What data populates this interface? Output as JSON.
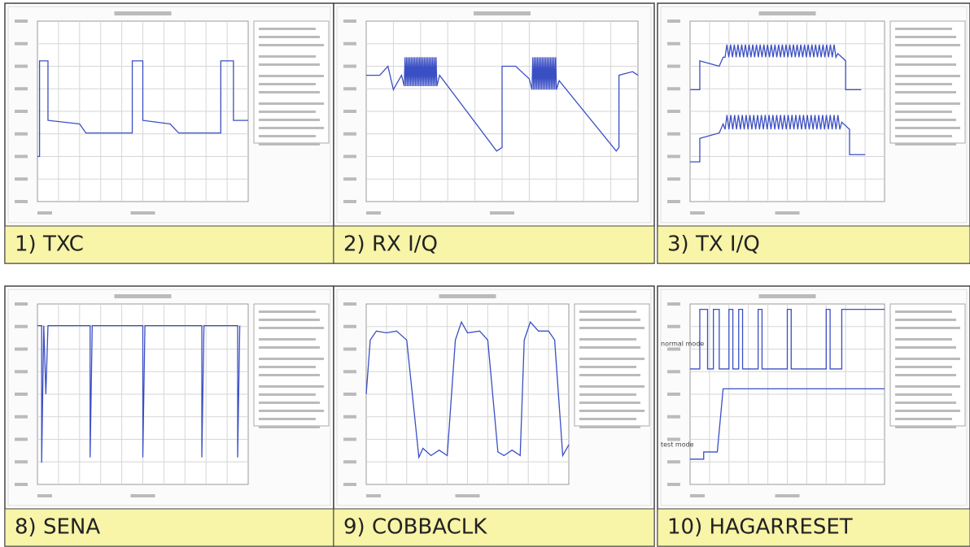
{
  "panels": [
    {
      "caption": "1) TXC"
    },
    {
      "caption": "2) RX I/Q"
    },
    {
      "caption": "3) TX I/Q"
    },
    {
      "caption": "8) SENA"
    },
    {
      "caption": "9) COBBACLK"
    },
    {
      "caption": "10) HAGARRESET",
      "labels": [
        "normal mode",
        "test mode"
      ]
    }
  ]
}
